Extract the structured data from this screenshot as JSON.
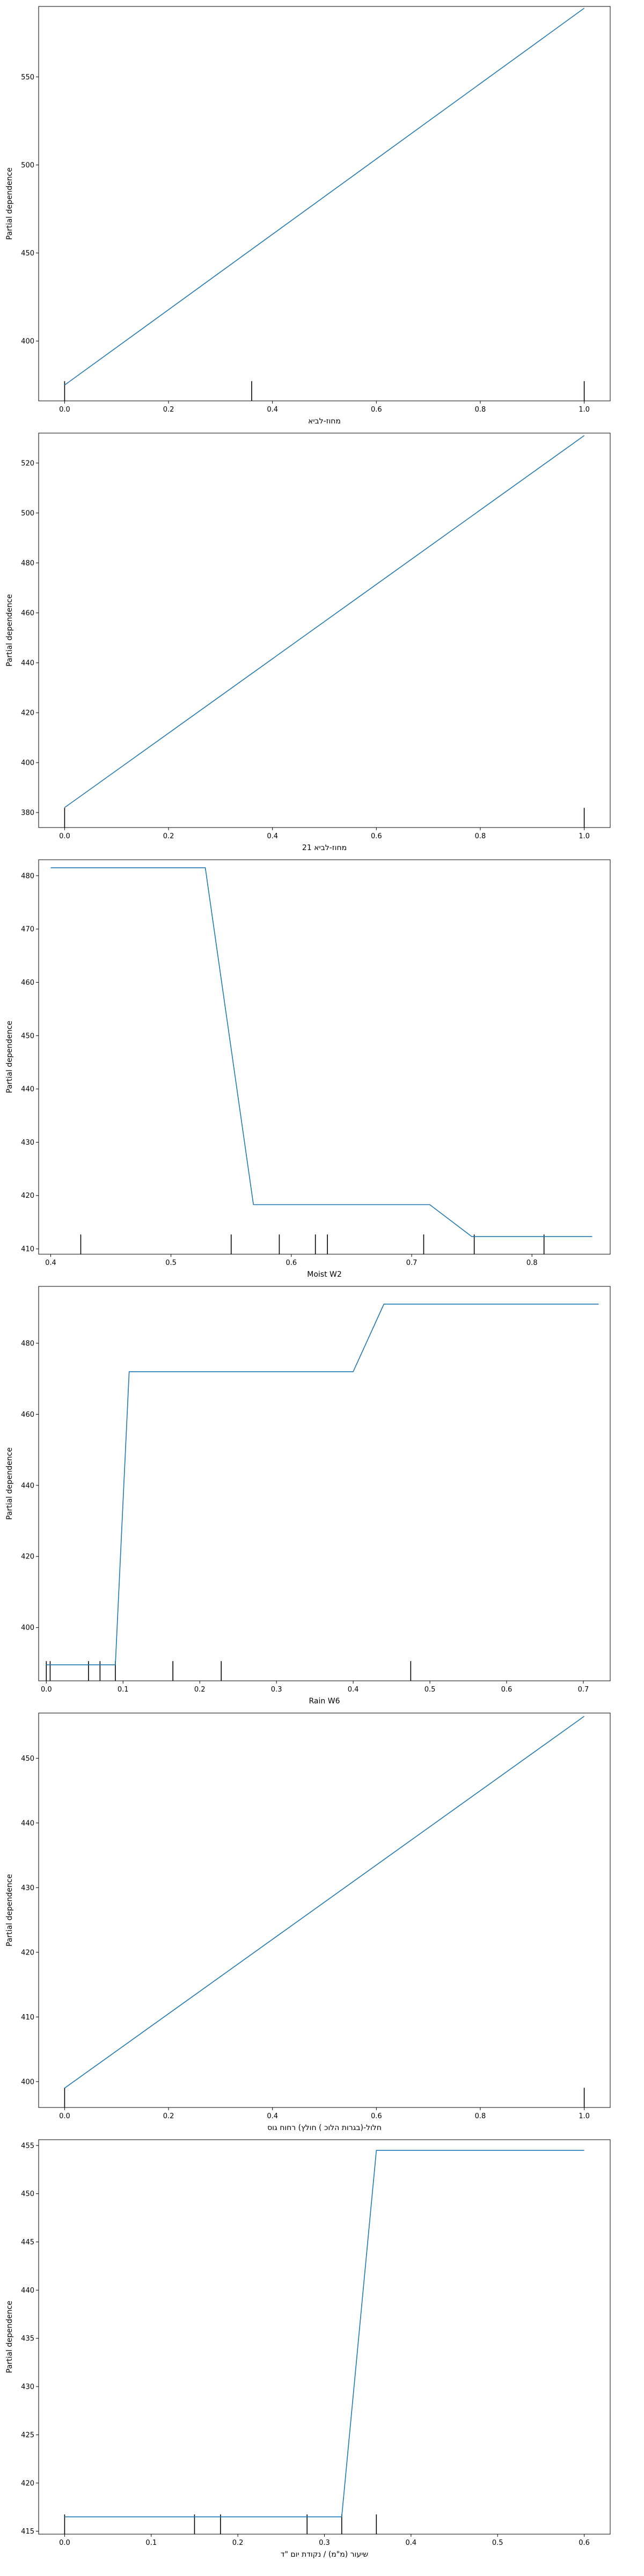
{
  "chart_data": [
    {
      "type": "line",
      "xlabel": "מחוז-לביא",
      "ylabel": "Partial dependence",
      "xlim": [
        -0.05,
        1.05
      ],
      "ylim": [
        366,
        590
      ],
      "xticks": [
        "0.0",
        "0.2",
        "0.4",
        "0.6",
        "0.8",
        "1.0"
      ],
      "xtick_values": [
        0.0,
        0.2,
        0.4,
        0.6,
        0.8,
        1.0
      ],
      "yticks": [
        "400",
        "450",
        "500",
        "550"
      ],
      "ytick_values": [
        400,
        450,
        500,
        550
      ],
      "series": [
        {
          "x": [
            0.0,
            1.0
          ],
          "y": [
            375,
            589
          ]
        }
      ],
      "rug": [
        0.0,
        0.36,
        1.0
      ],
      "color": "#1f77b4"
    },
    {
      "type": "line",
      "xlabel": "מחוז-לביא 21",
      "ylabel": "Partial dependence",
      "xlim": [
        -0.05,
        1.05
      ],
      "ylim": [
        374,
        532
      ],
      "xticks": [
        "0.0",
        "0.2",
        "0.4",
        "0.6",
        "0.8",
        "1.0"
      ],
      "xtick_values": [
        0.0,
        0.2,
        0.4,
        0.6,
        0.8,
        1.0
      ],
      "yticks": [
        "380",
        "400",
        "420",
        "440",
        "460",
        "480",
        "500",
        "520"
      ],
      "ytick_values": [
        380,
        400,
        420,
        440,
        460,
        480,
        500,
        520
      ],
      "series": [
        {
          "x": [
            0.0,
            1.0
          ],
          "y": [
            382,
            531
          ]
        }
      ],
      "rug": [
        0.0,
        1.0
      ],
      "color": "#1f77b4"
    },
    {
      "type": "line",
      "xlabel": "Moist W2",
      "ylabel": "Partial dependence",
      "xlim": [
        0.39,
        0.865
      ],
      "ylim": [
        409,
        483
      ],
      "xticks": [
        "0.4",
        "0.5",
        "0.6",
        "0.7",
        "0.8"
      ],
      "xtick_values": [
        0.4,
        0.5,
        0.6,
        0.7,
        0.8
      ],
      "yticks": [
        "410",
        "420",
        "430",
        "440",
        "450",
        "460",
        "470",
        "480"
      ],
      "ytick_values": [
        410,
        420,
        430,
        440,
        450,
        460,
        470,
        480
      ],
      "series": [
        {
          "x": [
            0.4,
            0.5285,
            0.5685,
            0.715,
            0.75,
            0.85
          ],
          "y": [
            481.5,
            481.5,
            418.3,
            418.3,
            412.3,
            412.3
          ]
        }
      ],
      "rug": [
        0.425,
        0.55,
        0.59,
        0.62,
        0.63,
        0.71,
        0.752,
        0.81
      ],
      "color": "#1f77b4"
    },
    {
      "type": "line",
      "xlabel": "Rain W6",
      "ylabel": "Partial dependence",
      "xlim": [
        -0.01,
        0.735
      ],
      "ylim": [
        385,
        496
      ],
      "xticks": [
        "0.0",
        "0.1",
        "0.2",
        "0.3",
        "0.4",
        "0.5",
        "0.6",
        "0.7"
      ],
      "xtick_values": [
        0.0,
        0.1,
        0.2,
        0.3,
        0.4,
        0.5,
        0.6,
        0.7
      ],
      "yticks": [
        "400",
        "420",
        "440",
        "460",
        "480"
      ],
      "ytick_values": [
        400,
        420,
        440,
        460,
        480
      ],
      "series": [
        {
          "x": [
            0.0,
            0.09,
            0.108,
            0.4,
            0.44,
            0.72
          ],
          "y": [
            389.5,
            389.5,
            472,
            472,
            491,
            491
          ]
        }
      ],
      "rug": [
        0.0,
        0.005,
        0.055,
        0.07,
        0.09,
        0.165,
        0.228,
        0.475
      ],
      "color": "#1f77b4"
    },
    {
      "type": "line",
      "xlabel": "חלול-(בגרות הלוכ ) חולץ) רחוח גוס",
      "ylabel": "Partial dependence",
      "xlim": [
        -0.05,
        1.05
      ],
      "ylim": [
        396,
        457
      ],
      "xticks": [
        "0.0",
        "0.2",
        "0.4",
        "0.6",
        "0.8",
        "1.0"
      ],
      "xtick_values": [
        0.0,
        0.2,
        0.4,
        0.6,
        0.8,
        1.0
      ],
      "yticks": [
        "400",
        "410",
        "420",
        "430",
        "440",
        "450"
      ],
      "ytick_values": [
        400,
        410,
        420,
        430,
        440,
        450
      ],
      "series": [
        {
          "x": [
            0.0,
            1.0
          ],
          "y": [
            399,
            456.5
          ]
        }
      ],
      "rug": [
        0.0,
        1.0
      ],
      "color": "#1f77b4"
    },
    {
      "type": "line",
      "xlabel": "שיעור (מ\"מ) / נקודת יום \"ד",
      "ylabel": "Partial dependence",
      "xlim": [
        -0.03,
        0.63
      ],
      "ylim": [
        414.7,
        455.6
      ],
      "xticks": [
        "0.0",
        "0.1",
        "0.2",
        "0.3",
        "0.4",
        "0.5",
        "0.6"
      ],
      "xtick_values": [
        0.0,
        0.1,
        0.2,
        0.3,
        0.4,
        0.5,
        0.6
      ],
      "yticks": [
        "415",
        "420",
        "425",
        "430",
        "435",
        "440",
        "445",
        "450",
        "455"
      ],
      "ytick_values": [
        415,
        420,
        425,
        430,
        435,
        440,
        445,
        450,
        455
      ],
      "series": [
        {
          "x": [
            0.0,
            0.32,
            0.36,
            0.6
          ],
          "y": [
            416.5,
            416.5,
            454.5,
            454.5
          ]
        }
      ],
      "rug": [
        0.0,
        0.15,
        0.18,
        0.28,
        0.32,
        0.36
      ],
      "color": "#1f77b4"
    }
  ]
}
